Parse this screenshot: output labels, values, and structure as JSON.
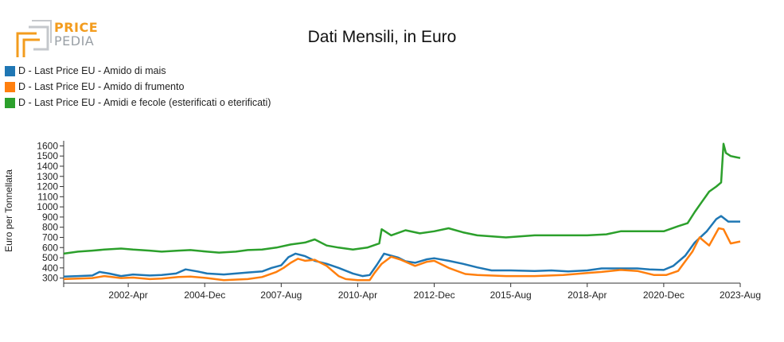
{
  "logo": {
    "line1": "PRICE",
    "line2": "PEDIA",
    "colors": {
      "orange": "#f39c1e",
      "gray": "#9aa0a6"
    }
  },
  "chart_data": {
    "type": "line",
    "title": "Dati Mensili, in Euro",
    "xlabel": "",
    "ylabel": "Euro per Tonnellata",
    "ylim": [
      250,
      1650
    ],
    "yticks": [
      300,
      400,
      500,
      600,
      700,
      800,
      900,
      1000,
      1100,
      1200,
      1300,
      1400,
      1500,
      1600
    ],
    "xlim": [
      "2000-01",
      "2023-08"
    ],
    "xticks": [
      {
        "date": "2002-04",
        "label": "2002-Apr"
      },
      {
        "date": "2004-12",
        "label": "2004-Dec"
      },
      {
        "date": "2007-08",
        "label": "2007-Aug"
      },
      {
        "date": "2010-04",
        "label": "2010-Apr"
      },
      {
        "date": "2012-12",
        "label": "2012-Dec"
      },
      {
        "date": "2015-08",
        "label": "2015-Aug"
      },
      {
        "date": "2018-04",
        "label": "2018-Apr"
      },
      {
        "date": "2020-12",
        "label": "2020-Dec"
      },
      {
        "date": "2023-08",
        "label": "2023-Aug"
      }
    ],
    "legend_position": "top-left",
    "grid": false,
    "series": [
      {
        "name": "D - Last Price EU - Amido di mais",
        "color": "#1f77b4",
        "points": [
          [
            "2000-01",
            315
          ],
          [
            "2000-07",
            320
          ],
          [
            "2001-01",
            325
          ],
          [
            "2001-04",
            360
          ],
          [
            "2001-08",
            345
          ],
          [
            "2002-01",
            320
          ],
          [
            "2002-06",
            335
          ],
          [
            "2003-01",
            325
          ],
          [
            "2003-06",
            330
          ],
          [
            "2003-12",
            345
          ],
          [
            "2004-04",
            385
          ],
          [
            "2004-09",
            365
          ],
          [
            "2005-01",
            345
          ],
          [
            "2005-08",
            335
          ],
          [
            "2006-01",
            345
          ],
          [
            "2006-06",
            355
          ],
          [
            "2006-12",
            365
          ],
          [
            "2007-04",
            400
          ],
          [
            "2007-08",
            425
          ],
          [
            "2007-11",
            505
          ],
          [
            "2008-02",
            540
          ],
          [
            "2008-06",
            515
          ],
          [
            "2008-10",
            470
          ],
          [
            "2009-03",
            440
          ],
          [
            "2009-08",
            400
          ],
          [
            "2010-02",
            345
          ],
          [
            "2010-06",
            320
          ],
          [
            "2010-09",
            330
          ],
          [
            "2010-12",
            430
          ],
          [
            "2011-03",
            540
          ],
          [
            "2011-06",
            520
          ],
          [
            "2011-09",
            500
          ],
          [
            "2011-12",
            465
          ],
          [
            "2012-04",
            450
          ],
          [
            "2012-09",
            485
          ],
          [
            "2012-12",
            495
          ],
          [
            "2013-06",
            470
          ],
          [
            "2013-12",
            440
          ],
          [
            "2014-06",
            405
          ],
          [
            "2014-12",
            375
          ],
          [
            "2015-08",
            375
          ],
          [
            "2016-06",
            370
          ],
          [
            "2017-01",
            375
          ],
          [
            "2017-08",
            365
          ],
          [
            "2018-04",
            375
          ],
          [
            "2018-10",
            395
          ],
          [
            "2019-06",
            395
          ],
          [
            "2020-01",
            395
          ],
          [
            "2020-06",
            385
          ],
          [
            "2020-12",
            380
          ],
          [
            "2021-04",
            420
          ],
          [
            "2021-09",
            520
          ],
          [
            "2022-01",
            650
          ],
          [
            "2022-06",
            760
          ],
          [
            "2022-10",
            880
          ],
          [
            "2022-12",
            910
          ],
          [
            "2023-03",
            855
          ],
          [
            "2023-08",
            855
          ]
        ]
      },
      {
        "name": "D - Last Price EU - Amido di frumento",
        "color": "#ff7f0e",
        "points": [
          [
            "2000-01",
            290
          ],
          [
            "2000-07",
            295
          ],
          [
            "2001-01",
            300
          ],
          [
            "2001-06",
            320
          ],
          [
            "2002-01",
            300
          ],
          [
            "2002-06",
            305
          ],
          [
            "2003-01",
            290
          ],
          [
            "2003-06",
            295
          ],
          [
            "2004-01",
            310
          ],
          [
            "2004-06",
            315
          ],
          [
            "2005-01",
            300
          ],
          [
            "2005-08",
            280
          ],
          [
            "2006-06",
            290
          ],
          [
            "2006-12",
            310
          ],
          [
            "2007-06",
            360
          ],
          [
            "2007-09",
            400
          ],
          [
            "2007-12",
            450
          ],
          [
            "2008-03",
            490
          ],
          [
            "2008-06",
            470
          ],
          [
            "2008-10",
            480
          ],
          [
            "2009-03",
            420
          ],
          [
            "2009-08",
            320
          ],
          [
            "2009-11",
            290
          ],
          [
            "2010-04",
            280
          ],
          [
            "2010-09",
            280
          ],
          [
            "2010-11",
            350
          ],
          [
            "2011-02",
            440
          ],
          [
            "2011-06",
            510
          ],
          [
            "2011-10",
            480
          ],
          [
            "2012-04",
            420
          ],
          [
            "2012-09",
            460
          ],
          [
            "2012-12",
            470
          ],
          [
            "2013-06",
            400
          ],
          [
            "2014-01",
            340
          ],
          [
            "2014-06",
            330
          ],
          [
            "2015-06",
            320
          ],
          [
            "2016-06",
            320
          ],
          [
            "2017-06",
            330
          ],
          [
            "2018-04",
            350
          ],
          [
            "2018-10",
            360
          ],
          [
            "2019-06",
            380
          ],
          [
            "2020-01",
            370
          ],
          [
            "2020-08",
            330
          ],
          [
            "2021-01",
            330
          ],
          [
            "2021-06",
            370
          ],
          [
            "2021-12",
            560
          ],
          [
            "2022-03",
            700
          ],
          [
            "2022-07",
            620
          ],
          [
            "2022-11",
            790
          ],
          [
            "2023-01",
            780
          ],
          [
            "2023-04",
            640
          ],
          [
            "2023-08",
            660
          ]
        ]
      },
      {
        "name": "D - Last Price EU - Amidi e fecole (esterificati o eterificati)",
        "color": "#2ca02c",
        "points": [
          [
            "2000-01",
            540
          ],
          [
            "2000-07",
            560
          ],
          [
            "2001-01",
            570
          ],
          [
            "2001-06",
            580
          ],
          [
            "2002-01",
            590
          ],
          [
            "2002-06",
            580
          ],
          [
            "2003-01",
            570
          ],
          [
            "2003-06",
            560
          ],
          [
            "2004-01",
            570
          ],
          [
            "2004-06",
            575
          ],
          [
            "2005-01",
            560
          ],
          [
            "2005-06",
            550
          ],
          [
            "2006-01",
            560
          ],
          [
            "2006-06",
            575
          ],
          [
            "2006-12",
            580
          ],
          [
            "2007-06",
            600
          ],
          [
            "2007-12",
            630
          ],
          [
            "2008-06",
            650
          ],
          [
            "2008-10",
            680
          ],
          [
            "2009-03",
            620
          ],
          [
            "2009-08",
            600
          ],
          [
            "2010-02",
            580
          ],
          [
            "2010-08",
            600
          ],
          [
            "2011-01",
            640
          ],
          [
            "2011-02",
            780
          ],
          [
            "2011-06",
            720
          ],
          [
            "2011-12",
            770
          ],
          [
            "2012-06",
            740
          ],
          [
            "2012-12",
            760
          ],
          [
            "2013-06",
            790
          ],
          [
            "2013-12",
            750
          ],
          [
            "2014-06",
            720
          ],
          [
            "2015-06",
            700
          ],
          [
            "2016-06",
            720
          ],
          [
            "2017-06",
            720
          ],
          [
            "2018-04",
            720
          ],
          [
            "2018-12",
            730
          ],
          [
            "2019-06",
            760
          ],
          [
            "2020-06",
            760
          ],
          [
            "2020-12",
            760
          ],
          [
            "2021-06",
            810
          ],
          [
            "2021-10",
            840
          ],
          [
            "2022-01",
            950
          ],
          [
            "2022-04",
            1050
          ],
          [
            "2022-07",
            1150
          ],
          [
            "2022-10",
            1200
          ],
          [
            "2022-12",
            1240
          ],
          [
            "2023-01",
            1620
          ],
          [
            "2023-02",
            1530
          ],
          [
            "2023-04",
            1500
          ],
          [
            "2023-06",
            1490
          ],
          [
            "2023-08",
            1480
          ]
        ]
      }
    ]
  }
}
